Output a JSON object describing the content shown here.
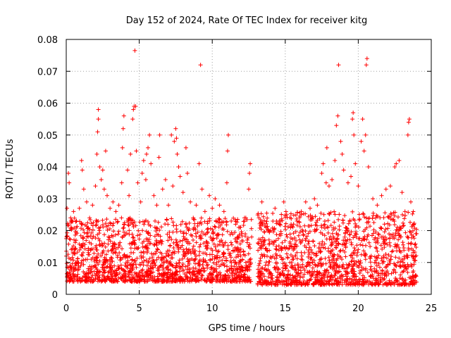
{
  "chart_data": {
    "type": "scatter",
    "title": "Day 152 of 2024, Rate Of TEC Index for receiver kitg",
    "xlabel": "GPS time / hours",
    "ylabel": "ROTI / TECUs",
    "xlim": [
      0,
      25
    ],
    "ylim": [
      0,
      0.08
    ],
    "xticks": [
      0,
      5,
      10,
      15,
      20,
      25
    ],
    "xtick_labels": [
      "0",
      "5",
      "10",
      "15",
      "20",
      "25"
    ],
    "yticks": [
      0,
      0.01,
      0.02,
      0.03,
      0.04,
      0.05,
      0.06,
      0.07,
      0.08
    ],
    "ytick_labels": [
      "0",
      "0.01",
      "0.02",
      "0.03",
      "0.04",
      "0.05",
      "0.06",
      "0.07",
      "0.08"
    ],
    "grid": true,
    "marker": "+",
    "color": "#ff0000",
    "series": [
      {
        "name": "ROTI",
        "points": [
          [
            0.05,
            0.027
          ],
          [
            0.15,
            0.038
          ],
          [
            0.2,
            0.035
          ],
          [
            0.3,
            0.024
          ],
          [
            0.5,
            0.026
          ],
          [
            0.7,
            0.023
          ],
          [
            0.9,
            0.027
          ],
          [
            1.05,
            0.042
          ],
          [
            1.1,
            0.039
          ],
          [
            1.2,
            0.033
          ],
          [
            1.4,
            0.029
          ],
          [
            1.6,
            0.024
          ],
          [
            1.8,
            0.028
          ],
          [
            2.0,
            0.034
          ],
          [
            2.1,
            0.044
          ],
          [
            2.15,
            0.051
          ],
          [
            2.2,
            0.055
          ],
          [
            2.2,
            0.058
          ],
          [
            2.3,
            0.04
          ],
          [
            2.4,
            0.036
          ],
          [
            2.5,
            0.039
          ],
          [
            2.6,
            0.033
          ],
          [
            2.7,
            0.045
          ],
          [
            2.8,
            0.031
          ],
          [
            3.0,
            0.027
          ],
          [
            3.2,
            0.029
          ],
          [
            3.4,
            0.026
          ],
          [
            3.6,
            0.028
          ],
          [
            3.8,
            0.035
          ],
          [
            3.85,
            0.046
          ],
          [
            3.9,
            0.052
          ],
          [
            3.95,
            0.056
          ],
          [
            4.2,
            0.039
          ],
          [
            4.3,
            0.031
          ],
          [
            4.4,
            0.044
          ],
          [
            4.55,
            0.055
          ],
          [
            4.6,
            0.058
          ],
          [
            4.65,
            0.059
          ],
          [
            4.7,
            0.0765
          ],
          [
            4.75,
            0.059
          ],
          [
            4.8,
            0.045
          ],
          [
            4.9,
            0.035
          ],
          [
            5.1,
            0.029
          ],
          [
            5.2,
            0.038
          ],
          [
            5.3,
            0.042
          ],
          [
            5.45,
            0.036
          ],
          [
            5.5,
            0.044
          ],
          [
            5.6,
            0.046
          ],
          [
            5.7,
            0.05
          ],
          [
            5.8,
            0.041
          ],
          [
            6.0,
            0.031
          ],
          [
            6.2,
            0.028
          ],
          [
            6.35,
            0.043
          ],
          [
            6.4,
            0.05
          ],
          [
            6.6,
            0.033
          ],
          [
            6.8,
            0.036
          ],
          [
            7.0,
            0.028
          ],
          [
            7.2,
            0.05
          ],
          [
            7.3,
            0.034
          ],
          [
            7.4,
            0.048
          ],
          [
            7.5,
            0.052
          ],
          [
            7.55,
            0.049
          ],
          [
            7.6,
            0.044
          ],
          [
            7.7,
            0.04
          ],
          [
            7.8,
            0.037
          ],
          [
            8.0,
            0.032
          ],
          [
            8.2,
            0.046
          ],
          [
            8.3,
            0.038
          ],
          [
            8.5,
            0.029
          ],
          [
            8.7,
            0.024
          ],
          [
            8.9,
            0.028
          ],
          [
            9.1,
            0.041
          ],
          [
            9.2,
            0.072
          ],
          [
            9.3,
            0.033
          ],
          [
            9.5,
            0.026
          ],
          [
            9.8,
            0.031
          ],
          [
            10.0,
            0.027
          ],
          [
            10.2,
            0.03
          ],
          [
            10.5,
            0.028
          ],
          [
            10.8,
            0.026
          ],
          [
            11.0,
            0.035
          ],
          [
            11.05,
            0.045
          ],
          [
            11.1,
            0.05
          ],
          [
            11.3,
            0.023
          ],
          [
            11.6,
            0.022
          ],
          [
            11.9,
            0.021
          ],
          [
            12.3,
            0.024
          ],
          [
            12.5,
            0.033
          ],
          [
            12.55,
            0.038
          ],
          [
            12.6,
            0.041
          ],
          [
            12.7,
            0.018
          ],
          [
            13.2,
            0.024
          ],
          [
            13.4,
            0.029
          ],
          [
            13.7,
            0.021
          ],
          [
            14.0,
            0.02
          ],
          [
            14.3,
            0.027
          ],
          [
            14.6,
            0.022
          ],
          [
            14.9,
            0.029
          ],
          [
            15.1,
            0.025
          ],
          [
            15.4,
            0.022
          ],
          [
            15.8,
            0.023
          ],
          [
            16.1,
            0.026
          ],
          [
            16.4,
            0.029
          ],
          [
            16.7,
            0.027
          ],
          [
            17.0,
            0.03
          ],
          [
            17.2,
            0.028
          ],
          [
            17.5,
            0.038
          ],
          [
            17.6,
            0.041
          ],
          [
            17.8,
            0.035
          ],
          [
            17.85,
            0.046
          ],
          [
            18.0,
            0.034
          ],
          [
            18.2,
            0.036
          ],
          [
            18.4,
            0.042
          ],
          [
            18.5,
            0.053
          ],
          [
            18.6,
            0.056
          ],
          [
            18.65,
            0.072
          ],
          [
            18.8,
            0.048
          ],
          [
            18.9,
            0.044
          ],
          [
            19.0,
            0.039
          ],
          [
            19.3,
            0.035
          ],
          [
            19.5,
            0.037
          ],
          [
            19.6,
            0.055
          ],
          [
            19.65,
            0.057
          ],
          [
            19.7,
            0.05
          ],
          [
            19.8,
            0.041
          ],
          [
            20.0,
            0.034
          ],
          [
            20.2,
            0.048
          ],
          [
            20.3,
            0.055
          ],
          [
            20.4,
            0.045
          ],
          [
            20.5,
            0.05
          ],
          [
            20.55,
            0.072
          ],
          [
            20.6,
            0.074
          ],
          [
            20.7,
            0.04
          ],
          [
            21.0,
            0.03
          ],
          [
            21.3,
            0.028
          ],
          [
            21.6,
            0.031
          ],
          [
            21.9,
            0.033
          ],
          [
            22.2,
            0.034
          ],
          [
            22.5,
            0.04
          ],
          [
            22.6,
            0.041
          ],
          [
            22.8,
            0.042
          ],
          [
            23.0,
            0.032
          ],
          [
            23.2,
            0.026
          ],
          [
            23.4,
            0.05
          ],
          [
            23.45,
            0.054
          ],
          [
            23.5,
            0.055
          ],
          [
            23.6,
            0.029
          ],
          [
            23.8,
            0.022
          ]
        ],
        "dense_band": {
          "description": "dense cloud of ROTI points between roughly 0.003 and 0.025 TECUs",
          "segments": [
            [
              0.0,
              12.7,
              0.004,
              0.024
            ],
            [
              13.1,
              24.0,
              0.003,
              0.026
            ]
          ]
        }
      }
    ]
  }
}
